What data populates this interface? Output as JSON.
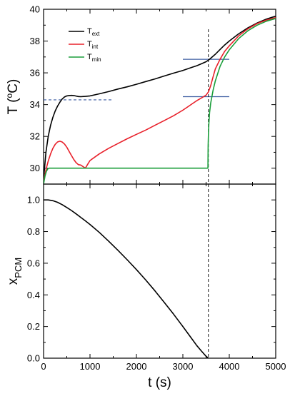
{
  "chart_data": [
    {
      "type": "line",
      "id": "top",
      "ylabel": "T (°C)",
      "xlim": [
        0,
        5000
      ],
      "ylim": [
        29,
        40
      ],
      "yticks": [
        30,
        32,
        34,
        36,
        38,
        40
      ],
      "legend_position": "top-left",
      "colors": {
        "Text": "#000000",
        "Tint": "#e8202a",
        "Tmin": "#1a9e3a",
        "guides": "#3b5ba0"
      },
      "series": [
        {
          "key": "Text",
          "name": "T",
          "sub": "ext",
          "color": "#000000",
          "x": [
            0,
            50,
            100,
            150,
            200,
            250,
            300,
            350,
            400,
            450,
            500,
            550,
            600,
            650,
            700,
            750,
            800,
            900,
            1000,
            1200,
            1400,
            1600,
            1800,
            2000,
            2200,
            2400,
            2600,
            2800,
            3000,
            3200,
            3300,
            3400,
            3500,
            3550,
            3600,
            3700,
            3800,
            3900,
            4000,
            4200,
            4400,
            4600,
            4800,
            5000
          ],
          "y": [
            29.3,
            31.0,
            32.0,
            32.7,
            33.2,
            33.6,
            33.9,
            34.15,
            34.35,
            34.48,
            34.55,
            34.57,
            34.58,
            34.57,
            34.54,
            34.51,
            34.5,
            34.52,
            34.55,
            34.68,
            34.82,
            34.98,
            35.12,
            35.28,
            35.45,
            35.62,
            35.8,
            35.98,
            36.15,
            36.35,
            36.45,
            36.57,
            36.7,
            36.8,
            36.92,
            37.17,
            37.47,
            37.75,
            38.0,
            38.45,
            38.83,
            39.14,
            39.38,
            39.57
          ]
        },
        {
          "key": "Tint",
          "name": "T",
          "sub": "int",
          "color": "#e8202a",
          "x": [
            0,
            50,
            100,
            150,
            200,
            250,
            300,
            350,
            400,
            450,
            500,
            550,
            600,
            650,
            700,
            750,
            800,
            850,
            900,
            950,
            1000,
            1200,
            1400,
            1600,
            1800,
            2000,
            2200,
            2400,
            2600,
            2800,
            3000,
            3100,
            3200,
            3300,
            3400,
            3500,
            3550,
            3600,
            3650,
            3700,
            3800,
            3900,
            4000,
            4200,
            4400,
            4600,
            4800,
            5000
          ],
          "y": [
            29.1,
            29.9,
            30.45,
            30.9,
            31.25,
            31.5,
            31.65,
            31.7,
            31.65,
            31.52,
            31.32,
            31.05,
            30.8,
            30.55,
            30.35,
            30.22,
            30.2,
            30.1,
            30.0,
            30.25,
            30.48,
            30.9,
            31.25,
            31.55,
            31.85,
            32.13,
            32.4,
            32.7,
            33.0,
            33.3,
            33.65,
            33.85,
            34.05,
            34.25,
            34.42,
            34.6,
            34.8,
            35.2,
            35.75,
            36.25,
            36.85,
            37.35,
            37.7,
            38.32,
            38.77,
            39.1,
            39.32,
            39.48
          ]
        },
        {
          "key": "Tmin",
          "name": "T",
          "sub": "min",
          "color": "#1a9e3a",
          "x": [
            0,
            30,
            60,
            90,
            120,
            150,
            3540,
            3545,
            3550,
            3560,
            3575,
            3600,
            3650,
            3700,
            3800,
            3900,
            4000,
            4200,
            4400,
            4600,
            4800,
            5000
          ],
          "y": [
            29.0,
            29.5,
            29.8,
            29.95,
            30.0,
            30.0,
            30.0,
            31.4,
            32.1,
            32.8,
            33.5,
            34.1,
            34.9,
            35.5,
            36.4,
            37.0,
            37.45,
            38.15,
            38.65,
            39.0,
            39.25,
            39.42
          ]
        }
      ],
      "reference_lines": [
        {
          "type": "dashed",
          "color": "#3b5ba0",
          "x": [
            0,
            1500
          ],
          "y": 34.3
        },
        {
          "type": "dashed",
          "color": "#3b5ba0",
          "x": [
            0,
            1500
          ],
          "y": 30.0
        },
        {
          "type": "solid",
          "color": "#3b5ba0",
          "x": [
            3000,
            4000
          ],
          "y": 36.85
        },
        {
          "type": "solid",
          "color": "#3b5ba0",
          "x": [
            3000,
            4000
          ],
          "y": 34.5
        },
        {
          "type": "vertical-dashed",
          "color": "#000000",
          "x": 3550
        }
      ]
    },
    {
      "type": "line",
      "id": "bottom",
      "xlabel": "t (s)",
      "ylabel": "x",
      "ylabel_sub": "PCM",
      "xlim": [
        0,
        5000
      ],
      "ylim": [
        0,
        1.1
      ],
      "xticks": [
        0,
        1000,
        2000,
        3000,
        4000,
        5000
      ],
      "yticks": [
        0.0,
        0.2,
        0.4,
        0.6,
        0.8,
        1.0
      ],
      "ytick_labels": [
        "0.0",
        "0.2",
        "0.4",
        "0.6",
        "0.8",
        "1.0"
      ],
      "series": [
        {
          "key": "xPCM",
          "color": "#000000",
          "x": [
            0,
            100,
            200,
            300,
            400,
            500,
            600,
            700,
            800,
            900,
            1000,
            1200,
            1400,
            1600,
            1800,
            2000,
            2200,
            2400,
            2600,
            2800,
            3000,
            3200,
            3300,
            3400,
            3500,
            3550
          ],
          "y": [
            1.0,
            1.0,
            0.995,
            0.985,
            0.97,
            0.952,
            0.933,
            0.912,
            0.89,
            0.868,
            0.845,
            0.795,
            0.74,
            0.682,
            0.622,
            0.56,
            0.494,
            0.425,
            0.352,
            0.278,
            0.2,
            0.12,
            0.08,
            0.045,
            0.012,
            0.0
          ]
        }
      ],
      "reference_lines": [
        {
          "type": "vertical-dashed",
          "color": "#000000",
          "x": 3550
        }
      ]
    }
  ]
}
